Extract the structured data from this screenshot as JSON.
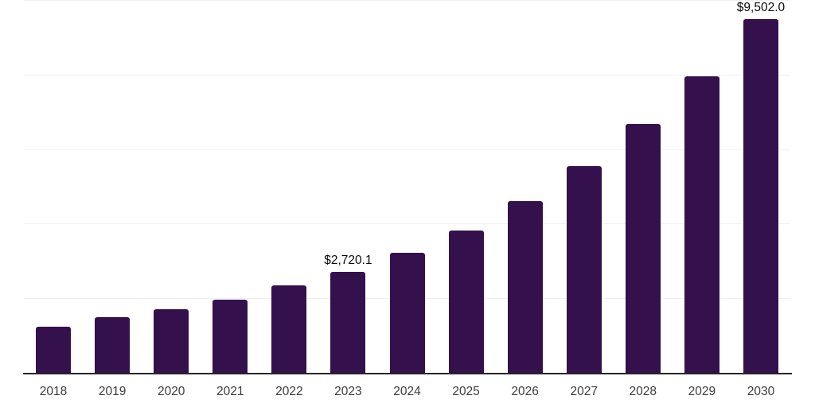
{
  "chart_data": {
    "type": "bar",
    "title": "",
    "xlabel": "",
    "ylabel": "",
    "categories": [
      "2018",
      "2019",
      "2020",
      "2021",
      "2022",
      "2023",
      "2024",
      "2025",
      "2026",
      "2027",
      "2028",
      "2029",
      "2030"
    ],
    "values": [
      1250,
      1510,
      1730,
      1990,
      2360,
      2720.1,
      3240,
      3840,
      4630,
      5560,
      6690,
      7970,
      9502.0
    ],
    "annotations": [
      {
        "category": "2023",
        "text": "$2,720.1"
      },
      {
        "category": "2030",
        "text": "$9,502.0"
      }
    ],
    "ylim": [
      0,
      10000
    ],
    "gridline_step": 2000,
    "grid": "horizontal",
    "legend": "none",
    "bar_color": "#34104d",
    "axis_line_color": "#262626",
    "gridline_color": "#f1f1f3",
    "data_label_color": "#0a0a0a",
    "tick_label_color": "#3d3d3d"
  }
}
